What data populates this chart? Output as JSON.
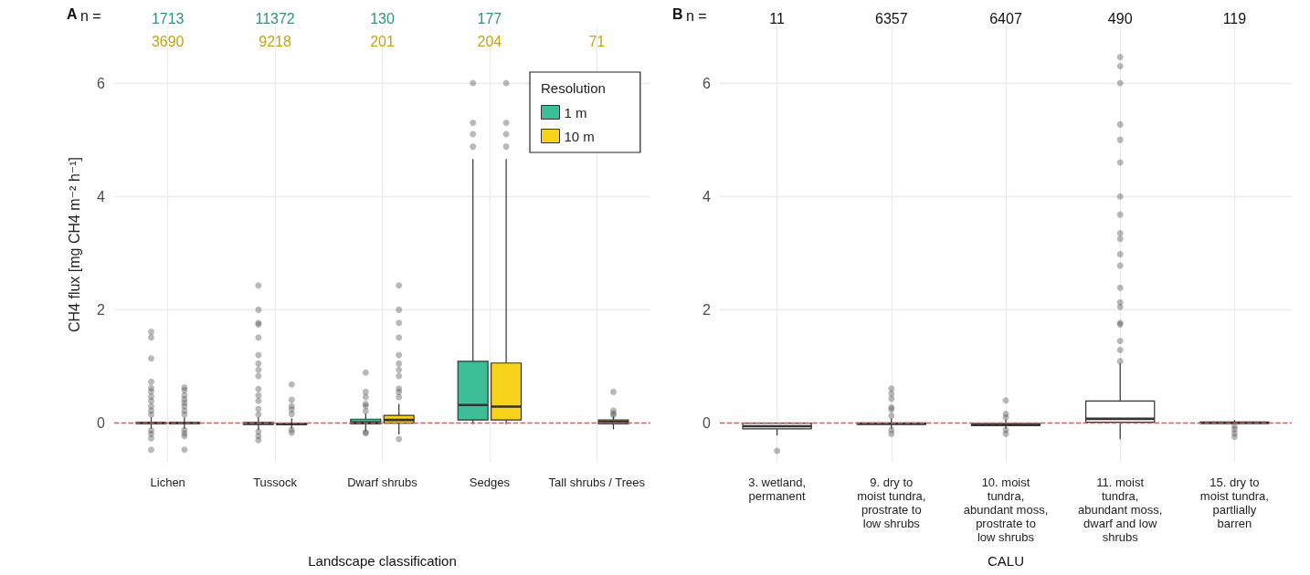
{
  "chart_data": [
    {
      "type": "box",
      "title": "A",
      "xlabel": "Landscape classification",
      "ylabel": "CH4 flux [mg CH4 m⁻² h⁻¹]",
      "legend_title": "Resolution",
      "legend": "top right",
      "grid": true,
      "annotations": [
        "n ="
      ],
      "categories": [
        "Lichen",
        "Tussock",
        "Dwarf shrubs",
        "Sedges",
        "Tall shrubs / Trees"
      ],
      "ylim": [
        -0.7,
        7
      ],
      "yticks": [
        0,
        2,
        4,
        6
      ],
      "ref_lines": [
        {
          "axis": "y",
          "value": 0,
          "color": "#e05a5a",
          "line_style": "dashed"
        }
      ],
      "series": [
        {
          "name": "1 m",
          "color": "#3dbd98",
          "value_labels": [
            "1713",
            "11372",
            "130",
            "177",
            null
          ],
          "boxes": [
            {
              "low": -0.1,
              "q1": -0.01,
              "median": 0,
              "q3": 0.01,
              "high": 0.1,
              "outliers": [
                1.61,
                1.51,
                1.14,
                0.73,
                0.62,
                0.56,
                0.47,
                0.39,
                0.3,
                0.22,
                0.15,
                -0.13,
                -0.19,
                -0.27,
                -0.47
              ]
            },
            {
              "low": -0.12,
              "q1": -0.02,
              "median": -0.01,
              "q3": 0.01,
              "high": 0.1,
              "outliers": [
                2.43,
                2.0,
                1.77,
                1.74,
                1.51,
                1.2,
                1.05,
                0.94,
                0.83,
                0.6,
                0.49,
                0.39,
                0.25,
                0.15,
                -0.15,
                -0.23,
                -0.3
              ]
            },
            {
              "low": -0.145,
              "q1": -0.014,
              "median": 0.014,
              "q3": 0.069,
              "high": 0.165,
              "outliers": [
                0.89,
                0.55,
                0.46,
                0.34,
                0.3,
                0.21,
                -0.16,
                -0.18
              ]
            },
            {
              "low": -0.02,
              "q1": 0.055,
              "median": 0.32,
              "q3": 1.09,
              "high": 4.66,
              "outliers": [
                4.88,
                5.1,
                5.3,
                6.0
              ]
            },
            null
          ]
        },
        {
          "name": "10 m",
          "color": "#f8d31c",
          "value_labels": [
            "3690",
            "9218",
            "201",
            "204",
            "71"
          ],
          "boxes": [
            {
              "low": -0.1,
              "q1": -0.01,
              "median": 0,
              "q3": 0.01,
              "high": 0.1,
              "outliers": [
                0.63,
                0.58,
                0.49,
                0.42,
                0.36,
                0.3,
                0.22,
                0.15,
                -0.12,
                -0.18,
                -0.23,
                -0.47
              ]
            },
            {
              "low": -0.1,
              "q1": -0.03,
              "median": -0.02,
              "q3": -0.005,
              "high": 0.08,
              "outliers": [
                0.68,
                0.41,
                0.3,
                0.24,
                0.16,
                -0.12,
                -0.17
              ]
            },
            {
              "low": -0.2,
              "q1": 0,
              "median": 0.055,
              "q3": 0.137,
              "high": 0.34,
              "outliers": [
                2.43,
                2.0,
                1.77,
                1.51,
                1.2,
                1.05,
                0.94,
                0.83,
                0.61,
                0.55,
                0.46,
                -0.28
              ]
            },
            {
              "low": -0.02,
              "q1": 0.055,
              "median": 0.29,
              "q3": 1.06,
              "high": 4.66,
              "outliers": [
                4.88,
                5.1,
                5.3,
                6.0
              ]
            },
            {
              "low": -0.11,
              "q1": -0.015,
              "median": 0.02,
              "q3": 0.055,
              "high": 0.117,
              "outliers": [
                0.55,
                0.22,
                0.17,
                0.14
              ]
            }
          ]
        }
      ]
    },
    {
      "type": "box",
      "title": "B",
      "xlabel": "CALU",
      "grid": true,
      "annotations": [
        "n ="
      ],
      "categories": [
        "3. wetland,\npermanent",
        "9. dry to\nmoist tundra,\nprostrate to\nlow shrubs",
        "10. moist\ntundra,\nabundant moss,\nprostrate to\nlow shrubs",
        "11. moist\ntundra,\nabundant moss,\ndwarf and low\nshrubs",
        "15. dry to\nmoist tundra,\npartlially\nbarren"
      ],
      "ylim": [
        -0.7,
        7
      ],
      "yticks": [
        0,
        2,
        4,
        6
      ],
      "ref_lines": [
        {
          "axis": "y",
          "value": 0,
          "color": "#e05a5a",
          "line_style": "dashed"
        }
      ],
      "series": [
        {
          "color": "#ffffff",
          "value_labels": [
            "11",
            "6357",
            "6407",
            "490",
            "119"
          ],
          "boxes": [
            {
              "low": -0.215,
              "q1": -0.103,
              "median": -0.055,
              "q3": 0,
              "high": 0,
              "outliers": [
                -0.49
              ]
            },
            {
              "low": -0.1,
              "q1": -0.02,
              "median": -0.01,
              "q3": 0,
              "high": 0.08,
              "outliers": [
                0.61,
                0.52,
                0.43,
                0.28,
                0.24,
                0.13,
                -0.12,
                -0.19
              ]
            },
            {
              "low": -0.1,
              "q1": -0.04,
              "median": -0.03,
              "q3": -0.01,
              "high": 0.06,
              "outliers": [
                0.4,
                0.16,
                0.1,
                -0.12,
                -0.19
              ]
            },
            {
              "low": -0.285,
              "q1": 0.014,
              "median": 0.076,
              "q3": 0.39,
              "high": 1.05,
              "outliers": [
                6.46,
                6.3,
                6.0,
                5.27,
                5.0,
                4.6,
                4.0,
                3.68,
                3.35,
                3.25,
                2.98,
                2.78,
                2.39,
                2.13,
                2.05,
                1.77,
                1.74,
                1.45,
                1.29,
                1.09
              ]
            },
            {
              "low": -0.005,
              "q1": -0.005,
              "median": 0.005,
              "q3": 0.02,
              "high": 0.055,
              "outliers": [
                -0.055,
                -0.11,
                -0.18,
                -0.24
              ]
            }
          ]
        }
      ]
    }
  ]
}
